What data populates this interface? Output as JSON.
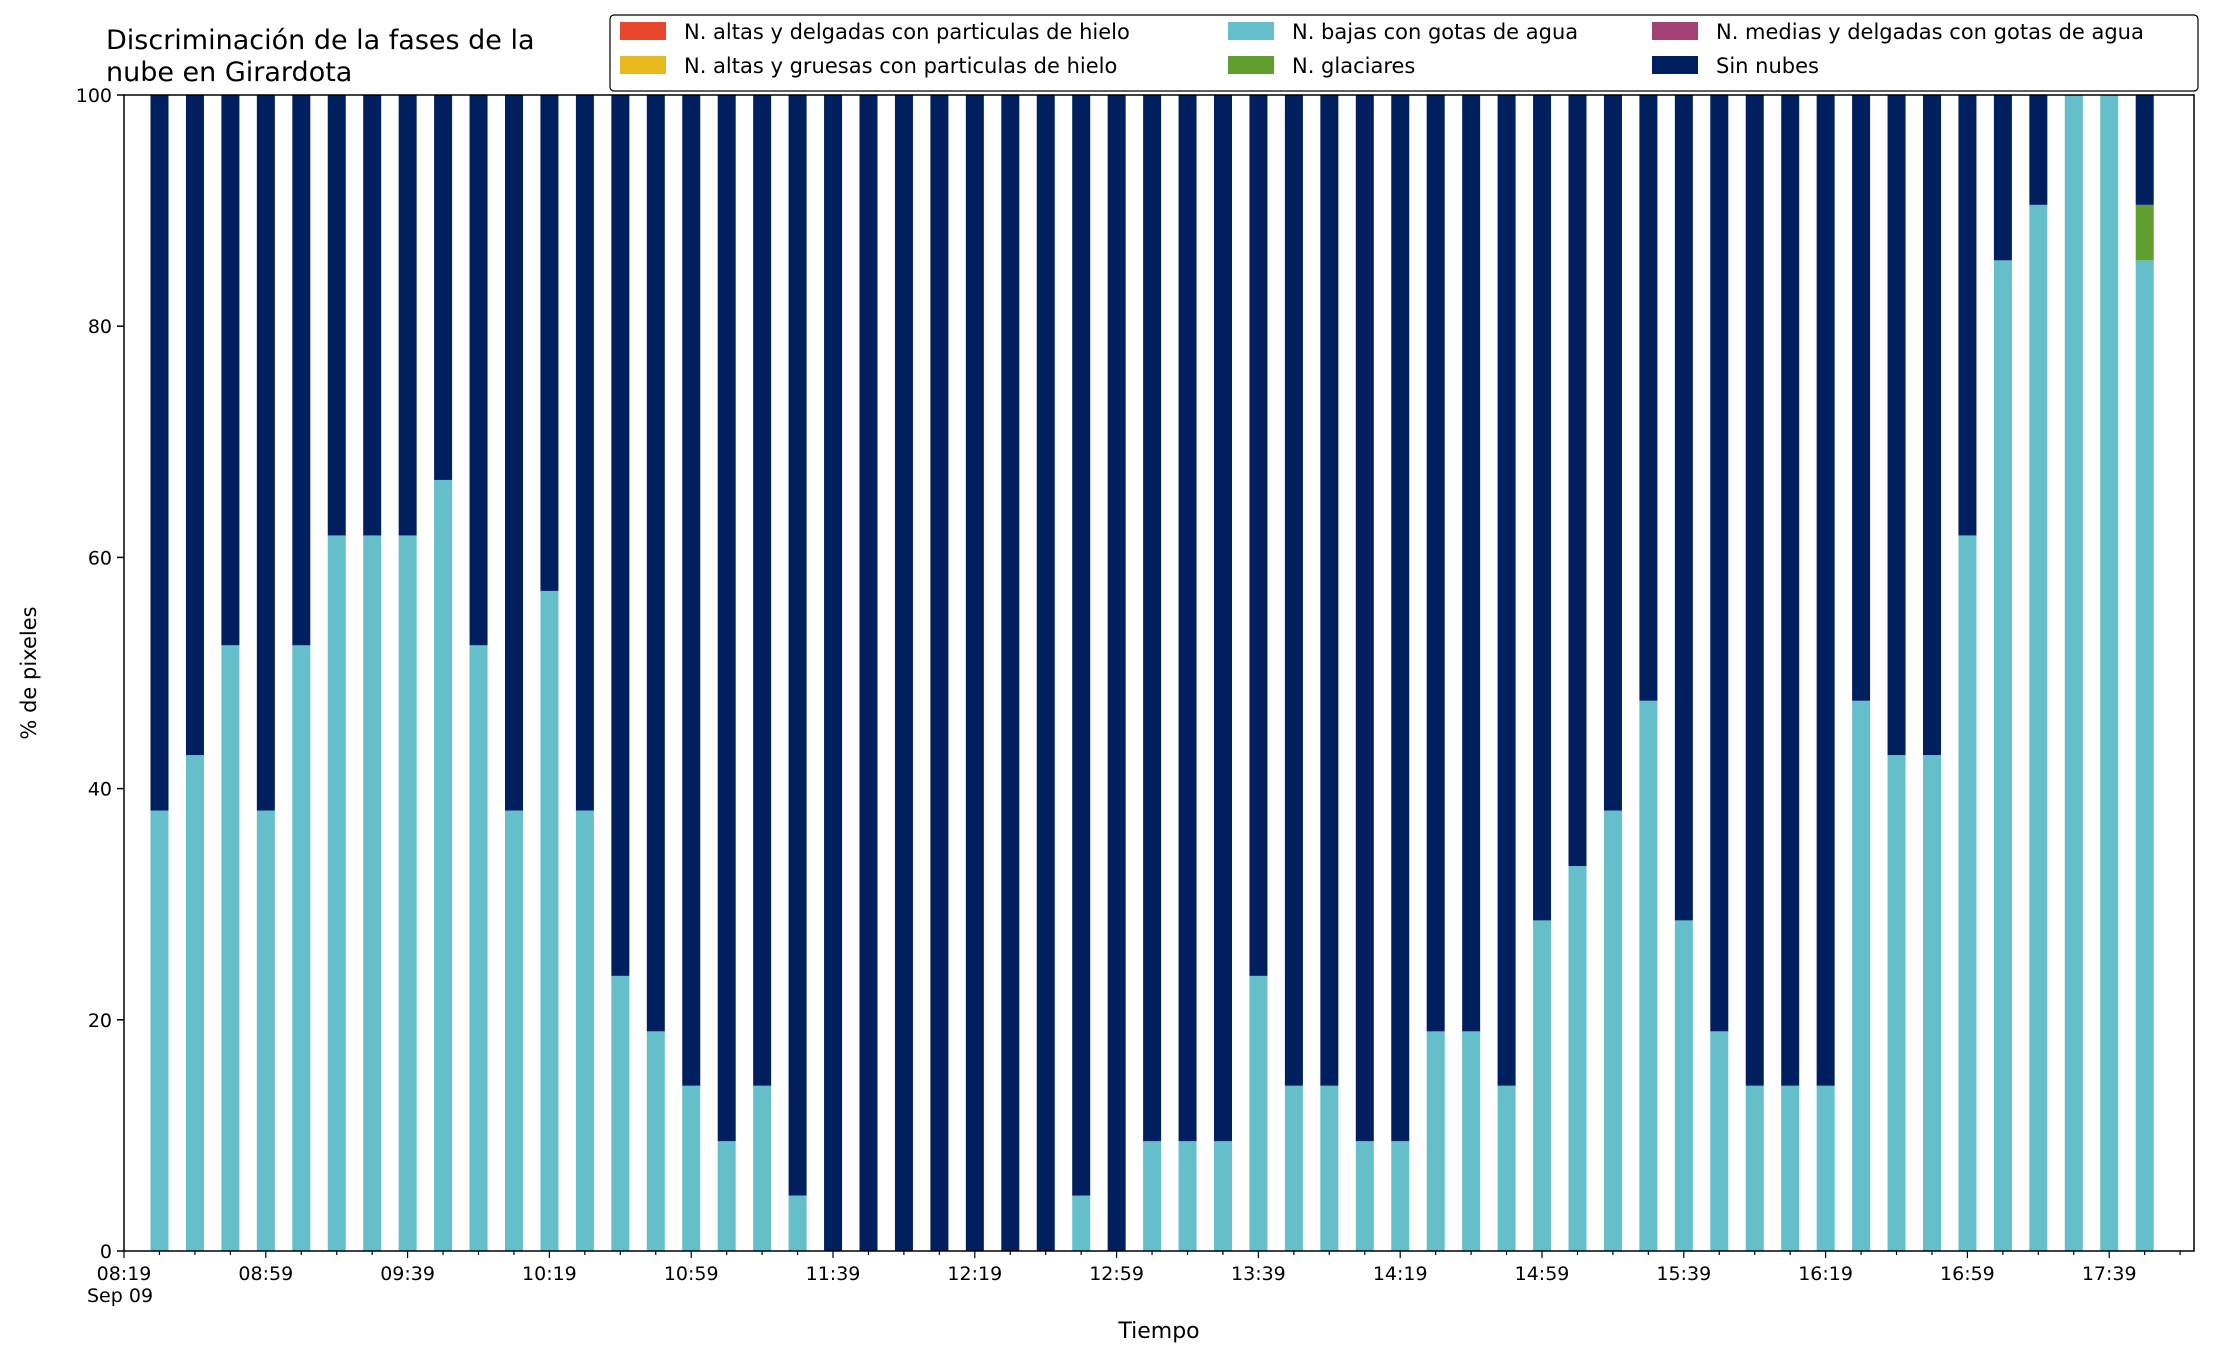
{
  "chart_data": {
    "type": "bar",
    "stacked": true,
    "title": "Discriminación de la fases de la\nnube en Girardota",
    "xlabel": "Tiempo",
    "ylabel": "% de pixeles",
    "ylim": [
      0,
      100
    ],
    "yticks": [
      0,
      20,
      40,
      60,
      80,
      100
    ],
    "grid": false,
    "legend_position": "top-right",
    "x_start": "08:19",
    "x_interval_minutes": 10,
    "x_tick_labels": [
      "08:19\nSep 09",
      "08:59",
      "09:39",
      "10:19",
      "10:59",
      "11:39",
      "12:19",
      "12:59",
      "13:39",
      "14:19",
      "14:59",
      "15:39",
      "16:19",
      "16:59",
      "17:39"
    ],
    "categories": [
      "08:29",
      "08:39",
      "08:49",
      "08:59",
      "09:09",
      "09:19",
      "09:29",
      "09:39",
      "09:49",
      "09:59",
      "10:09",
      "10:19",
      "10:29",
      "10:39",
      "10:49",
      "10:59",
      "11:09",
      "11:19",
      "11:29",
      "11:39",
      "11:49",
      "11:59",
      "12:09",
      "12:19",
      "12:29",
      "12:39",
      "12:49",
      "12:59",
      "13:09",
      "13:19",
      "13:29",
      "13:39",
      "13:49",
      "13:59",
      "14:09",
      "14:19",
      "14:29",
      "14:39",
      "14:49",
      "14:59",
      "15:09",
      "15:19",
      "15:29",
      "15:39",
      "15:49",
      "15:59",
      "16:09",
      "16:19",
      "16:29",
      "16:39",
      "16:49",
      "16:59",
      "17:09",
      "17:19",
      "17:29",
      "17:39",
      "17:49"
    ],
    "series": [
      {
        "name": "N. altas y delgadas con particulas de hielo",
        "color": "#e8472b",
        "values": [
          0,
          0,
          0,
          0,
          0,
          0,
          0,
          0,
          0,
          0,
          0,
          0,
          0,
          0,
          0,
          0,
          0,
          0,
          0,
          0,
          0,
          0,
          0,
          0,
          0,
          0,
          0,
          0,
          0,
          0,
          0,
          0,
          0,
          0,
          0,
          0,
          0,
          0,
          0,
          0,
          0,
          0,
          0,
          0,
          0,
          0,
          0,
          0,
          0,
          0,
          0,
          0,
          0,
          0,
          0,
          0,
          0
        ]
      },
      {
        "name": "N. altas y gruesas con particulas de hielo",
        "color": "#e6b91e",
        "values": [
          0,
          0,
          0,
          0,
          0,
          0,
          0,
          0,
          0,
          0,
          0,
          0,
          0,
          0,
          0,
          0,
          0,
          0,
          0,
          0,
          0,
          0,
          0,
          0,
          0,
          0,
          0,
          0,
          0,
          0,
          0,
          0,
          0,
          0,
          0,
          0,
          0,
          0,
          0,
          0,
          0,
          0,
          0,
          0,
          0,
          0,
          0,
          0,
          0,
          0,
          0,
          0,
          0,
          0,
          0,
          0,
          0
        ]
      },
      {
        "name": "N. bajas con gotas de agua",
        "color": "#64bfcb",
        "values": [
          38.1,
          42.9,
          52.4,
          38.1,
          52.4,
          61.9,
          61.9,
          61.9,
          66.7,
          52.4,
          38.1,
          57.1,
          38.1,
          23.8,
          19.0,
          14.3,
          9.5,
          14.3,
          4.8,
          0,
          0,
          0,
          0,
          0,
          0,
          0,
          4.8,
          0,
          9.5,
          9.5,
          9.5,
          23.8,
          14.3,
          14.3,
          9.5,
          9.5,
          19.0,
          19.0,
          14.3,
          28.6,
          33.3,
          38.1,
          47.6,
          28.6,
          19.0,
          14.3,
          14.3,
          14.3,
          47.6,
          42.9,
          42.9,
          61.9,
          85.7,
          90.5,
          100,
          100,
          85.7
        ]
      },
      {
        "name": "N. glaciares",
        "color": "#5f9e2f",
        "values": [
          0,
          0,
          0,
          0,
          0,
          0,
          0,
          0,
          0,
          0,
          0,
          0,
          0,
          0,
          0,
          0,
          0,
          0,
          0,
          0,
          0,
          0,
          0,
          0,
          0,
          0,
          0,
          0,
          0,
          0,
          0,
          0,
          0,
          0,
          0,
          0,
          0,
          0,
          0,
          0,
          0,
          0,
          0,
          0,
          0,
          0,
          0,
          0,
          0,
          0,
          0,
          0,
          0,
          0,
          0,
          0,
          4.8
        ]
      },
      {
        "name": "N. medias y delgadas con gotas de agua",
        "color": "#a44276",
        "values": [
          0,
          0,
          0,
          0,
          0,
          0,
          0,
          0,
          0,
          0,
          0,
          0,
          0,
          0,
          0,
          0,
          0,
          0,
          0,
          0,
          0,
          0,
          0,
          0,
          0,
          0,
          0,
          0,
          0,
          0,
          0,
          0,
          0,
          0,
          0,
          0,
          0,
          0,
          0,
          0,
          0,
          0,
          0,
          0,
          0,
          0,
          0,
          0,
          0,
          0,
          0,
          0,
          0,
          0,
          0,
          0,
          0
        ]
      },
      {
        "name": "Sin nubes",
        "color": "#001f5e",
        "values": [
          61.9,
          57.1,
          47.6,
          61.9,
          47.6,
          38.1,
          38.1,
          38.1,
          33.3,
          47.6,
          61.9,
          42.9,
          61.9,
          76.2,
          81.0,
          85.7,
          90.5,
          85.7,
          95.2,
          100,
          100,
          100,
          100,
          100,
          100,
          100,
          95.2,
          100,
          90.5,
          90.5,
          90.5,
          76.2,
          85.7,
          85.7,
          90.5,
          90.5,
          81.0,
          81.0,
          85.7,
          71.4,
          66.7,
          61.9,
          52.4,
          71.4,
          81.0,
          85.7,
          85.7,
          85.7,
          52.4,
          57.1,
          57.1,
          38.1,
          14.3,
          9.5,
          0,
          0,
          9.5
        ]
      }
    ],
    "legend_order": [
      "N. altas y delgadas con particulas de hielo",
      "N. altas y gruesas con particulas de hielo",
      "N. bajas con gotas de agua",
      "N. glaciares",
      "N. medias y delgadas con gotas de agua",
      "Sin nubes"
    ]
  }
}
